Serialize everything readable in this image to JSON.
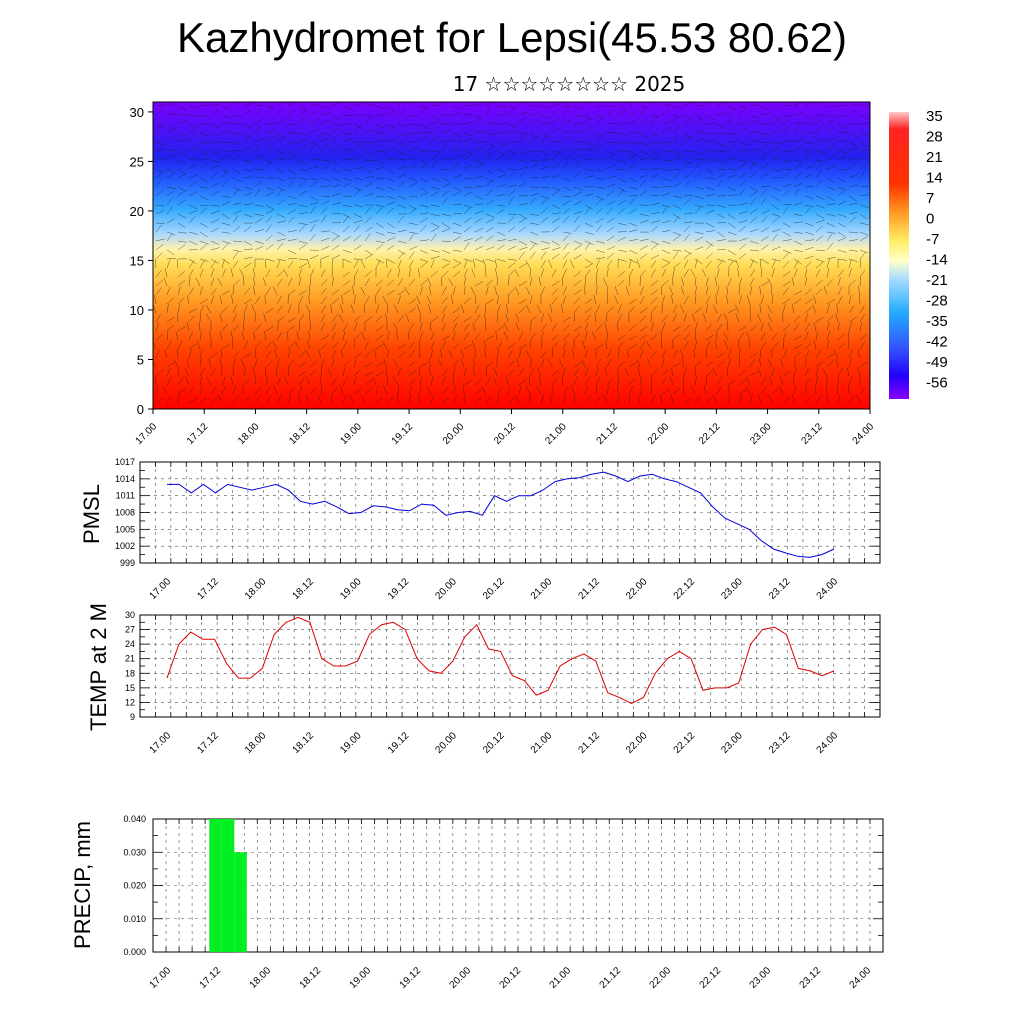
{
  "page": {
    "title": "Kazhydromet for Lepsi(45.53 80.62)",
    "subtitle": "17 ☆☆☆☆☆☆☆☆ 2025"
  },
  "time_labels": [
    "17.00",
    "17.12",
    "18.00",
    "18.12",
    "19.00",
    "19.12",
    "20.00",
    "20.12",
    "21.00",
    "21.12",
    "22.00",
    "22.12",
    "23.00",
    "23.12",
    "24.00"
  ],
  "chart_data": [
    {
      "type": "heatmap",
      "title": "",
      "xlabel": "",
      "ylabel": "",
      "x": [
        "17.00",
        "17.12",
        "18.00",
        "18.12",
        "19.00",
        "19.12",
        "20.00",
        "20.12",
        "21.00",
        "21.12",
        "22.00",
        "22.12",
        "23.00",
        "23.12",
        "24.00"
      ],
      "yticks": [
        0,
        5,
        10,
        15,
        20,
        25,
        30
      ],
      "ylim": [
        0,
        31
      ],
      "colorbar_labels": [
        "35",
        "28",
        "21",
        "14",
        "7",
        "0",
        "-7",
        "-14",
        "-21",
        "-28",
        "-35",
        "-42",
        "-49",
        "-56"
      ],
      "color_stops": [
        "#ff0000",
        "#ff6600",
        "#ffaa33",
        "#ffee66",
        "#aaddff",
        "#33aaff",
        "#3366ff",
        "#3300ff",
        "#7700ff"
      ],
      "overlay": "wind-barbs"
    },
    {
      "type": "line",
      "ylabel": "PMSL",
      "ylim": [
        999,
        1017
      ],
      "yticks": [
        "1017",
        "1014",
        "1011",
        "1008",
        "1005",
        "1002",
        "999"
      ],
      "color": "#0000dd",
      "values": [
        1013,
        1013,
        1011.5,
        1013,
        1011.5,
        1013,
        1012.5,
        1012,
        1012.5,
        1013,
        1012,
        1010,
        1009.5,
        1010,
        1009,
        1007.8,
        1008,
        1009.2,
        1009,
        1008.5,
        1008.3,
        1009.5,
        1009.3,
        1007.5,
        1008,
        1008.2,
        1007.5,
        1011,
        1010,
        1011,
        1011,
        1012,
        1013.5,
        1014,
        1014.2,
        1014.8,
        1015.2,
        1014.5,
        1013.5,
        1014.5,
        1014.8,
        1014,
        1013.5,
        1012.5,
        1011.5,
        1009,
        1007,
        1006,
        1005,
        1003,
        1001.5,
        1000.8,
        1000.2,
        1000,
        1000.5,
        1001.5
      ]
    },
    {
      "type": "line",
      "ylabel": "TEMP at 2 M",
      "ylim": [
        9,
        30
      ],
      "yticks": [
        "30",
        "27",
        "24",
        "21",
        "18",
        "15",
        "12",
        "9"
      ],
      "color": "#dd0000",
      "values": [
        17,
        24,
        26.5,
        25,
        25,
        20,
        17,
        17,
        19,
        26,
        28.5,
        29.5,
        28.5,
        21,
        19.5,
        19.5,
        20.5,
        26,
        28,
        28.5,
        27,
        21,
        18.5,
        18,
        20.5,
        25.5,
        28,
        23,
        22.5,
        17.5,
        16.5,
        13.5,
        14.5,
        19.5,
        21,
        22,
        20.5,
        14,
        13,
        11.8,
        13,
        18,
        21,
        22.5,
        21,
        14.5,
        15,
        15,
        16,
        24,
        27,
        27.5,
        26,
        19,
        18.5,
        17.5,
        18.5
      ]
    },
    {
      "type": "bar",
      "ylabel": "PRECIP, mm",
      "ylim": [
        0,
        0.04
      ],
      "yticks": [
        "0.040",
        "0.030",
        "0.020",
        "0.010",
        "0.000"
      ],
      "color": "#00ee22",
      "values": [
        0,
        0,
        0,
        0.04,
        0.04,
        0.03,
        0,
        0,
        0,
        0,
        0,
        0,
        0,
        0,
        0,
        0,
        0,
        0,
        0,
        0,
        0,
        0,
        0,
        0,
        0,
        0,
        0,
        0,
        0,
        0,
        0,
        0,
        0,
        0,
        0,
        0,
        0,
        0,
        0,
        0,
        0,
        0,
        0,
        0,
        0,
        0,
        0,
        0,
        0,
        0,
        0,
        0,
        0,
        0,
        0,
        0,
        0
      ]
    }
  ]
}
